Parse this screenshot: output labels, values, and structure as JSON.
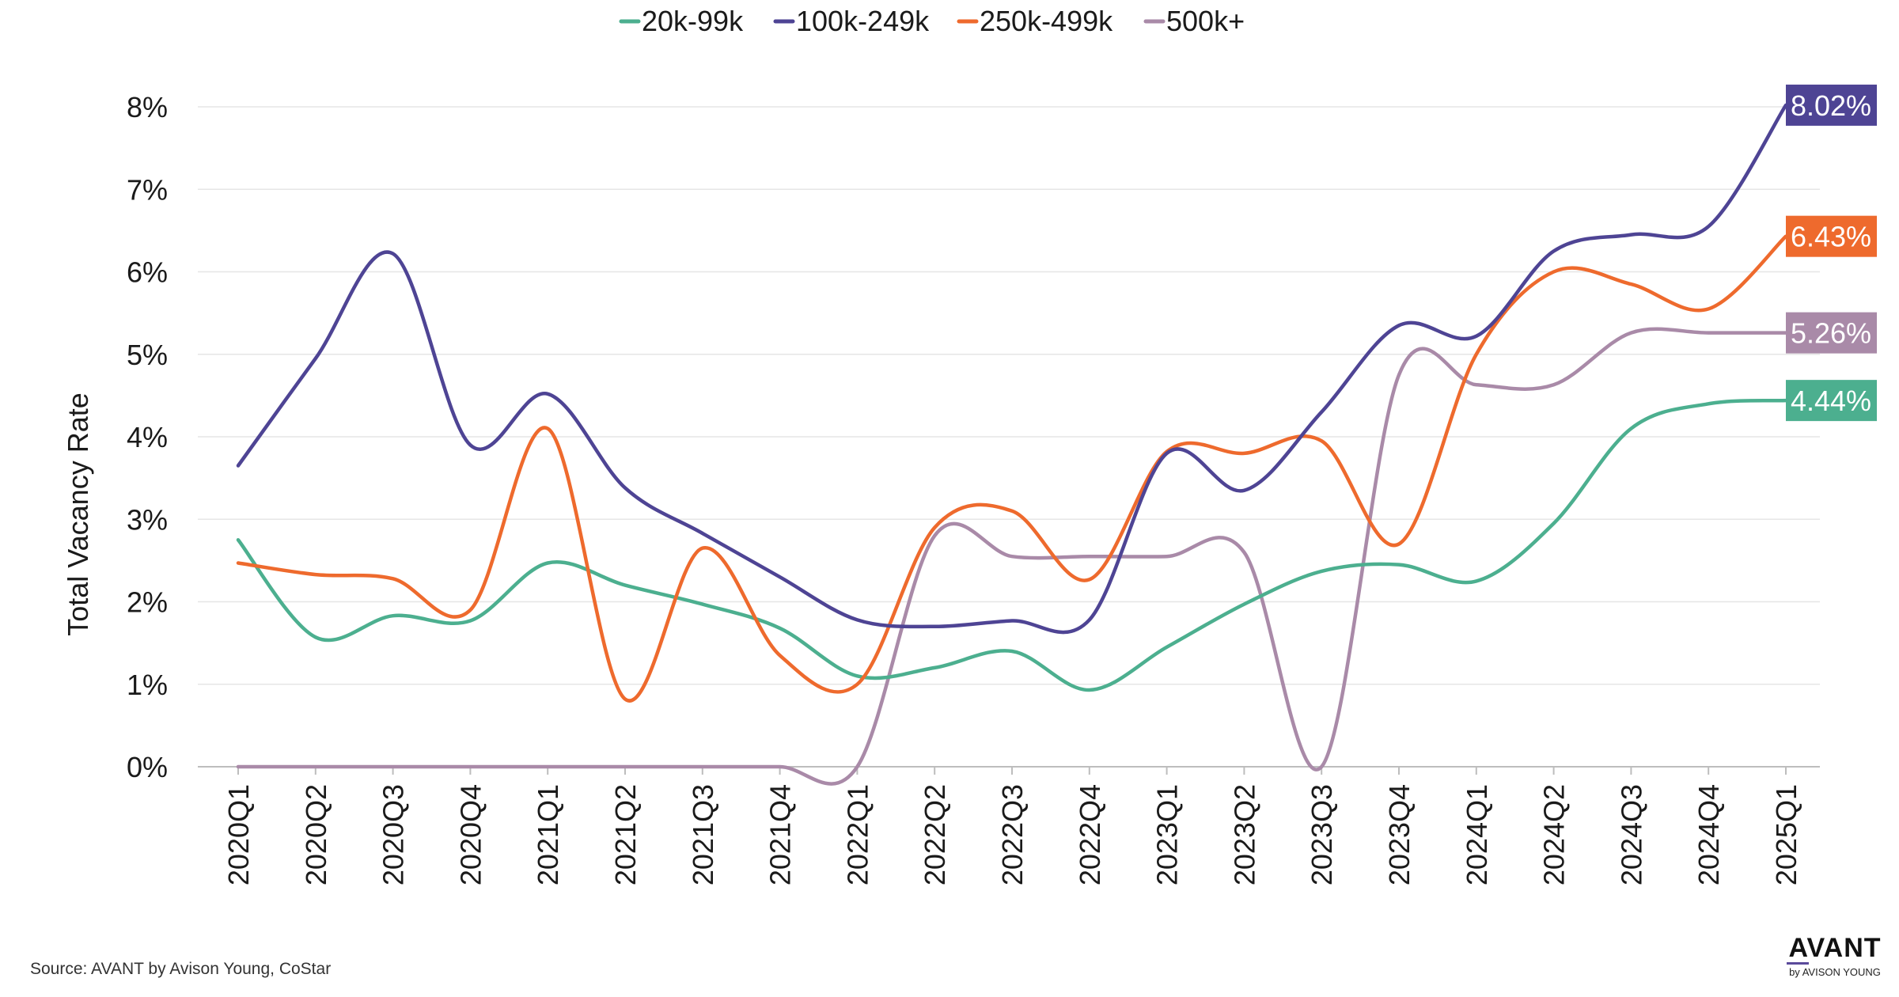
{
  "chart_data": {
    "type": "line",
    "ylabel": "Total Vacancy Rate",
    "ylim": [
      0,
      8
    ],
    "yticks": [
      "0%",
      "1%",
      "2%",
      "3%",
      "4%",
      "5%",
      "6%",
      "7%",
      "8%"
    ],
    "grid": true,
    "legend_position": "top",
    "categories": [
      "2020Q1",
      "2020Q2",
      "2020Q3",
      "2020Q4",
      "2021Q1",
      "2021Q2",
      "2021Q3",
      "2021Q4",
      "2022Q1",
      "2022Q2",
      "2022Q3",
      "2022Q4",
      "2023Q1",
      "2023Q2",
      "2023Q3",
      "2023Q4",
      "2024Q1",
      "2024Q2",
      "2024Q3",
      "2024Q4",
      "2025Q1"
    ],
    "series": [
      {
        "name": "20k-99k",
        "color": "#4caf8f",
        "end_label": "4.44%",
        "values": [
          2.75,
          1.57,
          1.83,
          1.77,
          2.47,
          2.2,
          1.97,
          1.68,
          1.1,
          1.2,
          1.4,
          0.93,
          1.45,
          1.97,
          2.37,
          2.45,
          2.25,
          2.95,
          4.1,
          4.4,
          4.44
        ]
      },
      {
        "name": "100k-249k",
        "color": "#4e4494",
        "end_label": "8.02%",
        "values": [
          3.65,
          4.95,
          6.22,
          3.9,
          4.52,
          3.38,
          2.83,
          2.3,
          1.78,
          1.7,
          1.77,
          1.78,
          3.8,
          3.35,
          4.3,
          5.35,
          5.22,
          6.25,
          6.45,
          6.55,
          8.02
        ]
      },
      {
        "name": "250k-499k",
        "color": "#ee6a2d",
        "end_label": "6.43%",
        "values": [
          2.47,
          2.33,
          2.28,
          1.9,
          4.1,
          0.82,
          2.65,
          1.35,
          1.0,
          2.9,
          3.1,
          2.27,
          3.82,
          3.8,
          3.95,
          2.7,
          5.0,
          6.0,
          5.85,
          5.55,
          6.43
        ]
      },
      {
        "name": "500k+",
        "color": "#a98aa8",
        "end_label": "5.26%",
        "values": [
          0,
          0,
          0,
          0,
          0,
          0,
          0,
          0,
          0,
          2.8,
          2.55,
          2.55,
          2.55,
          2.6,
          0,
          4.75,
          4.63,
          4.63,
          5.26,
          5.26,
          5.26
        ]
      }
    ]
  },
  "source": "Source: AVANT by Avison Young, CoStar",
  "brand": {
    "name": "AVANT",
    "sub": "by AVISON YOUNG"
  }
}
